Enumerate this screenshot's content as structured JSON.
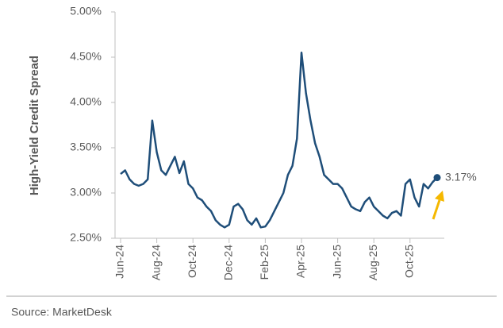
{
  "chart_data": {
    "type": "line",
    "y_axis_label": "High-Yield Credit Spread",
    "source": "Source: MarketDesk",
    "categories": [
      "Jun-24",
      null,
      null,
      null,
      null,
      null,
      null,
      null,
      "Aug-24",
      null,
      null,
      null,
      null,
      null,
      null,
      null,
      "Oct-24",
      null,
      null,
      null,
      null,
      null,
      null,
      null,
      "Dec-24",
      null,
      null,
      null,
      null,
      null,
      null,
      null,
      "Feb-25",
      null,
      null,
      null,
      null,
      null,
      null,
      null,
      "Apr-25",
      null,
      null,
      null,
      null,
      null,
      null,
      null,
      "Jun-25",
      null,
      null,
      null,
      null,
      null,
      null,
      null,
      "Aug-25",
      null,
      null,
      null,
      null,
      null,
      null,
      null,
      "Oct-25",
      null,
      null,
      null,
      null,
      null,
      null
    ],
    "series": [
      {
        "name": "High-Yield Credit Spread",
        "color": "#1f4e79",
        "values": [
          3.21,
          3.25,
          3.15,
          3.1,
          3.08,
          3.1,
          3.15,
          3.8,
          3.45,
          3.25,
          3.2,
          3.3,
          3.4,
          3.22,
          3.35,
          3.1,
          3.05,
          2.95,
          2.92,
          2.85,
          2.8,
          2.7,
          2.65,
          2.62,
          2.65,
          2.85,
          2.88,
          2.82,
          2.7,
          2.65,
          2.72,
          2.62,
          2.63,
          2.7,
          2.8,
          2.9,
          3.0,
          3.2,
          3.3,
          3.6,
          4.55,
          4.1,
          3.8,
          3.55,
          3.4,
          3.2,
          3.15,
          3.1,
          3.1,
          3.05,
          2.95,
          2.85,
          2.82,
          2.8,
          2.9,
          2.95,
          2.85,
          2.8,
          2.75,
          2.72,
          2.78,
          2.8,
          2.75,
          3.1,
          3.15,
          2.95,
          2.85,
          3.1,
          3.05,
          3.12,
          3.17
        ],
        "last_label": "3.17%"
      }
    ],
    "ylim": [
      2.5,
      5.0
    ],
    "yticks": [
      {
        "value": 2.5,
        "label": "2.50%"
      },
      {
        "value": 3.0,
        "label": "3.00%"
      },
      {
        "value": 3.5,
        "label": "3.50%"
      },
      {
        "value": 4.0,
        "label": "4.00%"
      },
      {
        "value": 4.5,
        "label": "4.50%"
      },
      {
        "value": 5.0,
        "label": "5.00%"
      }
    ]
  }
}
